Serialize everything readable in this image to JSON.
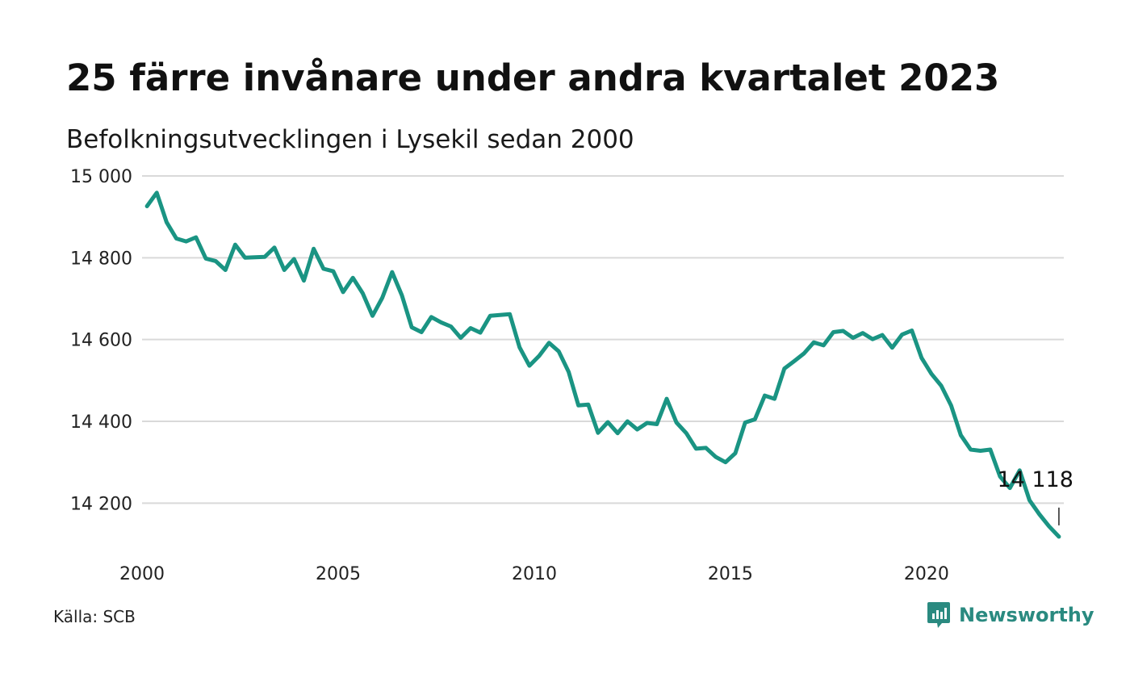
{
  "title": "25 färre invånare under andra kvartalet 2023",
  "subtitle": "Befolkningsutvecklingen i Lysekil sedan 2000",
  "source": "Källa: SCB",
  "brand": "Newsworthy",
  "colors": {
    "line": "#1a9483",
    "brand": "#2a8a80",
    "grid": "#d9d9d9"
  },
  "chart_data": {
    "type": "line",
    "title": "25 färre invånare under andra kvartalet 2023",
    "subtitle": "Befolkningsutvecklingen i Lysekil sedan 2000",
    "xlabel": "",
    "ylabel": "",
    "xlim": [
      2000,
      2023.5
    ],
    "ylim": [
      14100,
      15000
    ],
    "x_ticks": [
      2000,
      2005,
      2010,
      2015,
      2020
    ],
    "x_tick_labels": [
      "2000",
      "2005",
      "2010",
      "2015",
      "2020"
    ],
    "y_ticks": [
      14200,
      14400,
      14600,
      14800,
      15000
    ],
    "y_tick_labels": [
      "14 200",
      "14 400",
      "14 600",
      "14 800",
      "15 000"
    ],
    "grid": true,
    "legend": "none",
    "end_label": "14 118",
    "series": [
      {
        "x": [
          2000.125,
          2000.375,
          2000.625,
          2000.875,
          2001.125,
          2001.375,
          2001.625,
          2001.875,
          2002.125,
          2002.375,
          2002.625,
          2002.875,
          2003.125,
          2003.375,
          2003.625,
          2003.875,
          2004.125,
          2004.375,
          2004.625,
          2004.875,
          2005.125,
          2005.375,
          2005.625,
          2005.875,
          2006.125,
          2006.375,
          2006.625,
          2006.875,
          2007.125,
          2007.375,
          2007.625,
          2007.875,
          2008.125,
          2008.375,
          2008.625,
          2008.875,
          2009.125,
          2009.375,
          2009.625,
          2009.875,
          2010.125,
          2010.375,
          2010.625,
          2010.875,
          2011.125,
          2011.375,
          2011.625,
          2011.875,
          2012.125,
          2012.375,
          2012.625,
          2012.875,
          2013.125,
          2013.375,
          2013.625,
          2013.875,
          2014.125,
          2014.375,
          2014.625,
          2014.875,
          2015.125,
          2015.375,
          2015.625,
          2015.875,
          2016.125,
          2016.375,
          2016.625,
          2016.875,
          2017.125,
          2017.375,
          2017.625,
          2017.875,
          2018.125,
          2018.375,
          2018.625,
          2018.875,
          2019.125,
          2019.375,
          2019.625,
          2019.875,
          2020.125,
          2020.375,
          2020.625,
          2020.875,
          2021.125,
          2021.375,
          2021.625,
          2021.875,
          2022.125,
          2022.375,
          2022.625,
          2022.875,
          2023.125,
          2023.375
        ],
        "values": [
          14926,
          14959,
          14887,
          14847,
          14840,
          14850,
          14798,
          14792,
          14770,
          14832,
          14800,
          14801,
          14802,
          14825,
          14770,
          14797,
          14744,
          14822,
          14773,
          14767,
          14716,
          14751,
          14713,
          14658,
          14702,
          14765,
          14708,
          14630,
          14618,
          14655,
          14642,
          14632,
          14604,
          14628,
          14617,
          14658,
          14660,
          14662,
          14581,
          14536,
          14560,
          14592,
          14571,
          14521,
          14439,
          14441,
          14372,
          14398,
          14371,
          14400,
          14380,
          14396,
          14393,
          14455,
          14397,
          14371,
          14333,
          14335,
          14313,
          14300,
          14322,
          14397,
          14405,
          14463,
          14455,
          14529,
          14547,
          14566,
          14593,
          14586,
          14618,
          14621,
          14604,
          14616,
          14601,
          14611,
          14580,
          14612,
          14622,
          14555,
          14516,
          14487,
          14439,
          14366,
          14331,
          14328,
          14331,
          14265,
          14237,
          14280,
          14207,
          14173,
          14143,
          14118
        ]
      }
    ]
  }
}
